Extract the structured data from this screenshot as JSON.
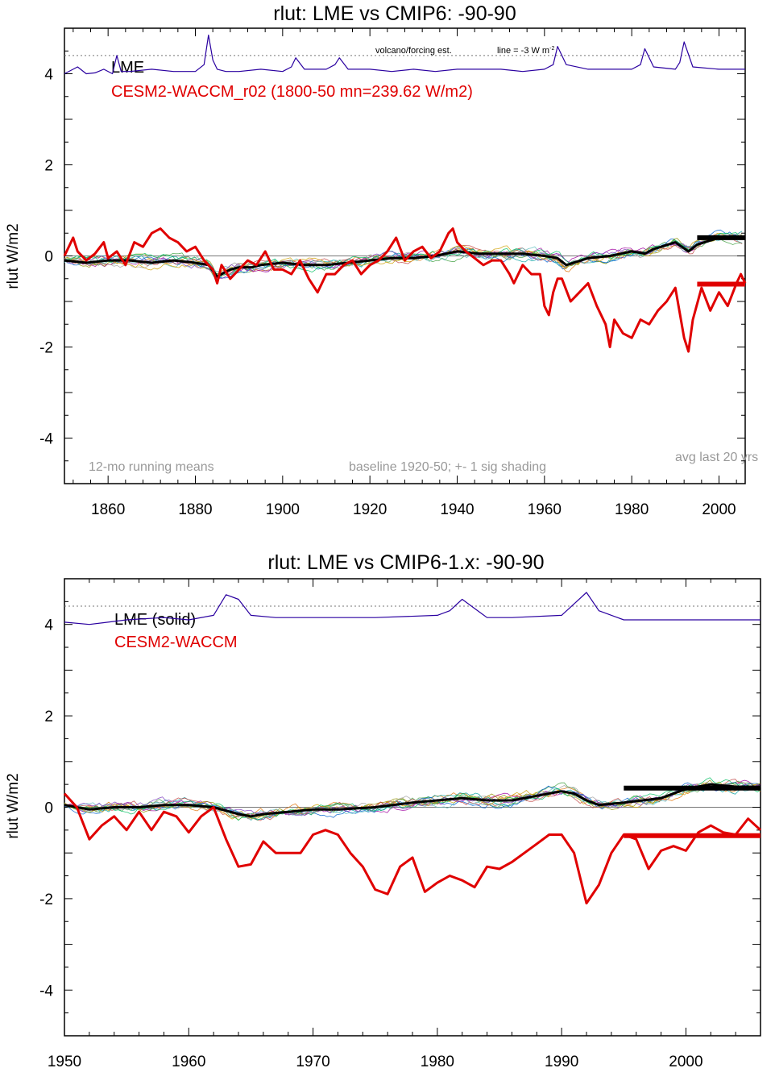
{
  "chart_data": [
    {
      "type": "line",
      "title": "rlut: LME vs CMIP6: -90-90",
      "ylabel": "rlut W/m2",
      "xlabel": "",
      "xlim": [
        1850,
        2006
      ],
      "ylim": [
        -5,
        5
      ],
      "xticks": [
        1860,
        1880,
        1900,
        1920,
        1940,
        1960,
        1980,
        2000
      ],
      "yticks": [
        -4,
        -2,
        0,
        2,
        4
      ],
      "ytick_labels": [
        "-4",
        "-2",
        "0",
        "2",
        "4"
      ],
      "legend": [
        {
          "label": "LME",
          "color": "#000000"
        },
        {
          "label": "CESM2-WACCM_r02 (1800-50 mn=239.62 W/m2)",
          "color": "#e00000"
        }
      ],
      "annotations": {
        "left": "12-mo running means",
        "middle": "baseline 1920-50; +- 1 sig shading",
        "right": "avg last 20 yrs",
        "volcano": "volcano/forcing est.",
        "volcano_line": "line = -3 W m",
        "volcano_line_sup": "-2"
      },
      "reference_line": 4.4,
      "series": [
        {
          "name": "volcano forcing",
          "color": "#2a00a0",
          "x": [
            1850,
            1853,
            1855,
            1857,
            1859,
            1861,
            1862,
            1863,
            1865,
            1870,
            1875,
            1880,
            1882,
            1883,
            1884,
            1885,
            1887,
            1890,
            1895,
            1900,
            1902,
            1903,
            1905,
            1910,
            1912,
            1913,
            1915,
            1920,
            1925,
            1930,
            1935,
            1940,
            1945,
            1950,
            1955,
            1960,
            1962,
            1963,
            1965,
            1970,
            1975,
            1980,
            1982,
            1983,
            1985,
            1990,
            1991,
            1992,
            1994,
            2000,
            2006
          ],
          "values": [
            4.0,
            4.15,
            4.0,
            4.02,
            4.1,
            4.0,
            4.4,
            4.05,
            4.05,
            4.1,
            4.05,
            4.05,
            4.2,
            4.85,
            4.3,
            4.1,
            4.05,
            4.05,
            4.1,
            4.05,
            4.15,
            4.35,
            4.1,
            4.1,
            4.2,
            4.35,
            4.1,
            4.1,
            4.05,
            4.1,
            4.05,
            4.1,
            4.1,
            4.1,
            4.05,
            4.1,
            4.2,
            4.6,
            4.2,
            4.1,
            4.1,
            4.1,
            4.2,
            4.55,
            4.15,
            4.1,
            4.25,
            4.7,
            4.15,
            4.1,
            4.1
          ]
        },
        {
          "name": "LME ensemble mean",
          "color": "#000000",
          "x": [
            1850,
            1855,
            1860,
            1865,
            1870,
            1875,
            1880,
            1883,
            1885,
            1888,
            1890,
            1893,
            1895,
            1900,
            1905,
            1910,
            1915,
            1920,
            1925,
            1930,
            1935,
            1940,
            1945,
            1950,
            1955,
            1960,
            1963,
            1965,
            1970,
            1975,
            1980,
            1983,
            1985,
            1990,
            1993,
            1995,
            2000,
            2006
          ],
          "values": [
            -0.1,
            -0.15,
            -0.1,
            -0.1,
            -0.15,
            -0.1,
            -0.15,
            -0.2,
            -0.45,
            -0.3,
            -0.25,
            -0.25,
            -0.2,
            -0.15,
            -0.2,
            -0.2,
            -0.15,
            -0.1,
            -0.05,
            -0.05,
            0.0,
            0.1,
            0.05,
            0.05,
            0.05,
            0.0,
            -0.05,
            -0.2,
            -0.05,
            0.0,
            0.1,
            0.05,
            0.15,
            0.3,
            0.1,
            0.25,
            0.4,
            0.4
          ]
        },
        {
          "name": "CESM2-WACCM_r02",
          "color": "#e00000",
          "x": [
            1850,
            1852,
            1853,
            1855,
            1857,
            1859,
            1860,
            1862,
            1864,
            1866,
            1868,
            1870,
            1872,
            1874,
            1876,
            1878,
            1880,
            1882,
            1884,
            1885,
            1886,
            1888,
            1890,
            1892,
            1894,
            1896,
            1898,
            1900,
            1902,
            1904,
            1906,
            1908,
            1910,
            1912,
            1914,
            1916,
            1918,
            1920,
            1922,
            1924,
            1926,
            1928,
            1930,
            1932,
            1934,
            1936,
            1938,
            1939,
            1940,
            1942,
            1944,
            1946,
            1948,
            1950,
            1952,
            1953,
            1955,
            1957,
            1959,
            1960,
            1961,
            1962,
            1963,
            1964,
            1966,
            1968,
            1970,
            1972,
            1974,
            1975,
            1976,
            1978,
            1980,
            1982,
            1984,
            1986,
            1988,
            1990,
            1992,
            1993,
            1994,
            1996,
            1998,
            2000,
            2002,
            2004,
            2005,
            2006
          ],
          "values": [
            0.0,
            0.4,
            0.1,
            -0.1,
            0.05,
            0.3,
            -0.05,
            0.1,
            -0.2,
            0.3,
            0.2,
            0.5,
            0.6,
            0.4,
            0.3,
            0.1,
            0.2,
            -0.1,
            -0.3,
            -0.6,
            -0.2,
            -0.5,
            -0.3,
            -0.1,
            -0.2,
            0.1,
            -0.3,
            -0.3,
            -0.4,
            -0.1,
            -0.5,
            -0.8,
            -0.4,
            -0.4,
            -0.2,
            -0.1,
            -0.4,
            -0.2,
            -0.1,
            0.1,
            0.4,
            -0.1,
            0.1,
            0.2,
            -0.05,
            0.1,
            0.5,
            0.6,
            0.3,
            0.1,
            -0.05,
            -0.2,
            -0.1,
            -0.1,
            -0.4,
            -0.6,
            -0.2,
            -0.4,
            -0.4,
            -1.1,
            -1.3,
            -0.8,
            -0.5,
            -0.5,
            -1.0,
            -0.8,
            -0.6,
            -1.1,
            -1.5,
            -2.0,
            -1.4,
            -1.7,
            -1.8,
            -1.4,
            -1.5,
            -1.2,
            -1.0,
            -0.7,
            -1.8,
            -2.1,
            -1.4,
            -0.7,
            -1.2,
            -0.8,
            -1.1,
            -0.6,
            -0.4,
            -0.6
          ]
        },
        {
          "name": "LME avg last 20 yrs",
          "color": "#000000",
          "x": [
            1995,
            2006
          ],
          "values": [
            0.4,
            0.4
          ]
        },
        {
          "name": "CESM2 avg last 20 yrs",
          "color": "#e00000",
          "x": [
            1995,
            2006
          ],
          "values": [
            -0.62,
            -0.62
          ]
        }
      ]
    },
    {
      "type": "line",
      "title": "rlut: LME vs CMIP6-1.x: -90-90",
      "ylabel": "rlut W/m2",
      "xlabel": "",
      "xlim": [
        1950,
        2006
      ],
      "ylim": [
        -5,
        5
      ],
      "xticks": [
        1950,
        1960,
        1970,
        1980,
        1990,
        2000
      ],
      "yticks": [
        -4,
        -2,
        0,
        2,
        4
      ],
      "ytick_labels": [
        "-4",
        "-2",
        "0",
        "2",
        "4"
      ],
      "legend": [
        {
          "label": "LME (solid)",
          "color": "#000000"
        },
        {
          "label": "CESM2-WACCM",
          "color": "#e00000"
        }
      ],
      "reference_line": 4.4,
      "series": [
        {
          "name": "volcano forcing",
          "color": "#2a00a0",
          "x": [
            1950,
            1952,
            1955,
            1958,
            1960,
            1962,
            1963,
            1964,
            1965,
            1967,
            1970,
            1975,
            1980,
            1981,
            1982,
            1983,
            1984,
            1986,
            1990,
            1991,
            1992,
            1993,
            1995,
            2000,
            2006
          ],
          "values": [
            4.05,
            4.0,
            4.1,
            4.15,
            4.1,
            4.2,
            4.65,
            4.55,
            4.2,
            4.15,
            4.15,
            4.15,
            4.2,
            4.3,
            4.55,
            4.35,
            4.15,
            4.15,
            4.2,
            4.45,
            4.7,
            4.3,
            4.1,
            4.1,
            4.1
          ]
        },
        {
          "name": "LME ensemble mean",
          "color": "#000000",
          "x": [
            1950,
            1952,
            1954,
            1956,
            1958,
            1960,
            1962,
            1964,
            1965,
            1966,
            1968,
            1970,
            1972,
            1975,
            1978,
            1980,
            1982,
            1984,
            1986,
            1988,
            1990,
            1991,
            1992,
            1993,
            1995,
            1998,
            2000,
            2002,
            2004,
            2006
          ],
          "values": [
            0.05,
            -0.05,
            0.0,
            0.0,
            0.05,
            0.05,
            0.0,
            -0.15,
            -0.2,
            -0.15,
            -0.1,
            -0.05,
            -0.05,
            0.0,
            0.1,
            0.15,
            0.2,
            0.15,
            0.15,
            0.25,
            0.35,
            0.3,
            0.15,
            0.05,
            0.1,
            0.2,
            0.4,
            0.5,
            0.45,
            0.45
          ]
        },
        {
          "name": "CESM2-WACCM",
          "color": "#e00000",
          "x": [
            1950,
            1951,
            1952,
            1953,
            1954,
            1955,
            1956,
            1957,
            1958,
            1959,
            1960,
            1961,
            1962,
            1963,
            1964,
            1965,
            1966,
            1967,
            1968,
            1969,
            1970,
            1971,
            1972,
            1973,
            1974,
            1975,
            1976,
            1977,
            1978,
            1979,
            1980,
            1981,
            1982,
            1983,
            1984,
            1985,
            1986,
            1987,
            1988,
            1989,
            1990,
            1991,
            1992,
            1993,
            1994,
            1995,
            1996,
            1997,
            1998,
            1999,
            2000,
            2001,
            2002,
            2003,
            2004,
            2005,
            2006
          ],
          "values": [
            0.3,
            0.0,
            -0.7,
            -0.4,
            -0.2,
            -0.5,
            -0.1,
            -0.5,
            -0.1,
            -0.2,
            -0.55,
            -0.2,
            0.0,
            -0.7,
            -1.3,
            -1.25,
            -0.75,
            -1.0,
            -1.0,
            -1.0,
            -0.6,
            -0.5,
            -0.6,
            -1.0,
            -1.3,
            -1.8,
            -1.9,
            -1.3,
            -1.1,
            -1.85,
            -1.65,
            -1.5,
            -1.6,
            -1.75,
            -1.3,
            -1.35,
            -1.2,
            -1.0,
            -0.8,
            -0.6,
            -0.6,
            -1.0,
            -2.1,
            -1.7,
            -1.0,
            -0.6,
            -0.7,
            -1.35,
            -0.95,
            -0.85,
            -0.95,
            -0.55,
            -0.4,
            -0.55,
            -0.6,
            -0.25,
            -0.5
          ]
        },
        {
          "name": "LME avg last 20 yrs",
          "color": "#000000",
          "x": [
            1995,
            2006
          ],
          "values": [
            0.42,
            0.42
          ]
        },
        {
          "name": "CESM2 avg last 20 yrs",
          "color": "#e00000",
          "x": [
            1995,
            2006
          ],
          "values": [
            -0.62,
            -0.62
          ]
        }
      ]
    }
  ]
}
